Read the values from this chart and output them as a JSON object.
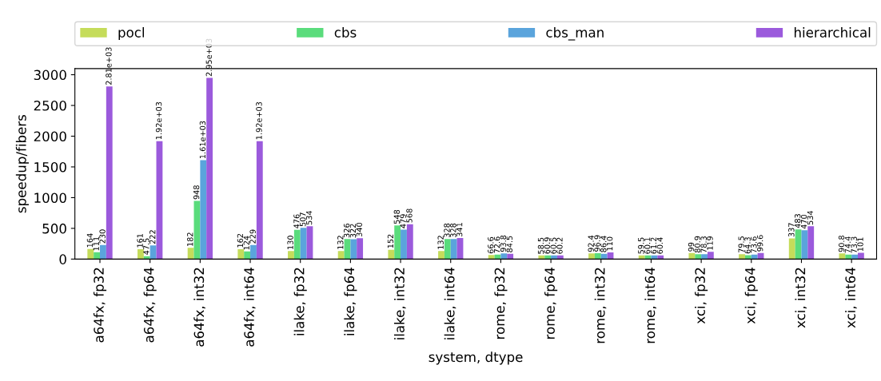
{
  "chart_data": {
    "type": "bar",
    "xlabel": "system, dtype",
    "ylabel": "speedup/fibers",
    "categories": [
      "a64fx, fp32",
      "a64fx, fp64",
      "a64fx, int32",
      "a64fx, int64",
      "ilake, fp32",
      "ilake, fp64",
      "ilake, int32",
      "ilake, int64",
      "rome, fp32",
      "rome, fp64",
      "rome, int32",
      "rome, int64",
      "xci, fp32",
      "xci, fp64",
      "xci, int32",
      "xci, int64"
    ],
    "series": [
      {
        "name": "pocl",
        "color": "#c5dc5a",
        "values": [
          164,
          161,
          182,
          162,
          130,
          132,
          152,
          132,
          66.6,
          58.5,
          92.4,
          59.5,
          99,
          79.5,
          337,
          90.8
        ],
        "value_labels": [
          "164",
          "161",
          "182",
          "162",
          "130",
          "132",
          "152",
          "132",
          "66.6",
          "58.5",
          "92.4",
          "59.5",
          "99",
          "79.5",
          "337",
          "90.8"
        ]
      },
      {
        "name": "cbs",
        "color": "#5adc7c",
        "values": [
          111,
          47.5,
          948,
          124,
          476,
          326,
          548,
          328,
          72.6,
          60.9,
          96.9,
          60.1,
          80.9,
          64.3,
          483,
          74.4
        ],
        "value_labels": [
          "111",
          "47.5",
          "948",
          "124",
          "476",
          "326",
          "548",
          "328",
          "72.6",
          "60.9",
          "96.9",
          "60.1",
          "80.9",
          "64.3",
          "483",
          "74.4"
        ]
      },
      {
        "name": "cbs_man",
        "color": "#5aa4dc",
        "values": [
          230,
          222,
          1610,
          229,
          507,
          322,
          479,
          328,
          93.8,
          60.5,
          86.4,
          61.2,
          78.3,
          73.6,
          470,
          73.3
        ],
        "value_labels": [
          "230",
          "222",
          "1.61e+03",
          "229",
          "507",
          "322",
          "479",
          "328",
          "93.8",
          "60.5",
          "86.4",
          "61.2",
          "78.3",
          "73.6",
          "470",
          "73.3"
        ]
      },
      {
        "name": "hierarchical",
        "color": "#9b5adc",
        "values": [
          2810,
          1920,
          2950,
          1920,
          534,
          340,
          568,
          341,
          84.5,
          60.2,
          110,
          60.4,
          119,
          99.6,
          534,
          101
        ],
        "value_labels": [
          "2.81e+03",
          "1.92e+03",
          "2.95e+03",
          "1.92e+03",
          "534",
          "340",
          "568",
          "341",
          "84.5",
          "60.2",
          "110",
          "60.4",
          "119",
          "99.6",
          "534",
          "101"
        ]
      }
    ],
    "ylim": [
      0,
      3100
    ],
    "yticks": [
      0,
      500,
      1000,
      1500,
      2000,
      2500,
      3000
    ],
    "legend": "top",
    "grid": false
  }
}
